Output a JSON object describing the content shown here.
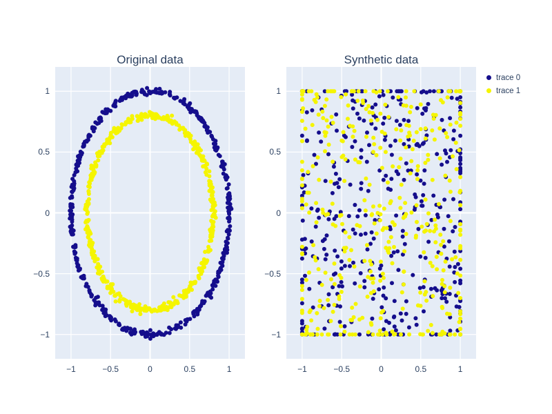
{
  "figure": {
    "background": "#ffffff",
    "plot_bgcolor": "#e5ecf6",
    "grid_color": "#ffffff",
    "font_color": "#2a3f5f"
  },
  "legend": {
    "items": [
      {
        "label": "trace 0",
        "color": "#150e8c"
      },
      {
        "label": "trace 1",
        "color": "#f5f500"
      }
    ]
  },
  "chart_data": [
    {
      "type": "scatter",
      "title": "Original data",
      "xlabel": "",
      "ylabel": "",
      "xlim": [
        -1.2,
        1.2
      ],
      "ylim": [
        -1.2,
        1.2
      ],
      "tick_values": [
        -1,
        -0.5,
        0,
        0.5,
        1
      ],
      "tick_labels": [
        "−1",
        "−0.5",
        "0",
        "0.5",
        "1"
      ],
      "grid": true,
      "legend_position": "none",
      "series": [
        {
          "name": "trace 0",
          "color": "#150e8c",
          "marker_size": 3,
          "generator": "ring",
          "radius": 1.0,
          "noise": 0.012,
          "count": 520,
          "seed": 11
        },
        {
          "name": "trace 1",
          "color": "#f5f500",
          "marker_size": 3,
          "generator": "ring",
          "radius": 0.8,
          "noise": 0.014,
          "count": 520,
          "seed": 22
        }
      ]
    },
    {
      "type": "scatter",
      "title": "Synthetic data",
      "xlabel": "",
      "ylabel": "",
      "xlim": [
        -1.2,
        1.2
      ],
      "ylim": [
        -1.2,
        1.2
      ],
      "tick_values": [
        -1,
        -0.5,
        0,
        0.5,
        1
      ],
      "tick_labels": [
        "−1",
        "−0.5",
        "0",
        "0.5",
        "1"
      ],
      "grid": true,
      "legend_position": "top-right-outside",
      "series": [
        {
          "name": "trace 0",
          "color": "#150e8c",
          "marker_size": 3,
          "generator": "uniform_clipped",
          "spread": 1.15,
          "clip": [
            -1,
            1
          ],
          "count": 430,
          "seed": 33
        },
        {
          "name": "trace 1",
          "color": "#f5f500",
          "marker_size": 3,
          "generator": "uniform_clipped",
          "spread": 1.15,
          "clip": [
            -1,
            1
          ],
          "count": 430,
          "seed": 44
        }
      ]
    }
  ]
}
